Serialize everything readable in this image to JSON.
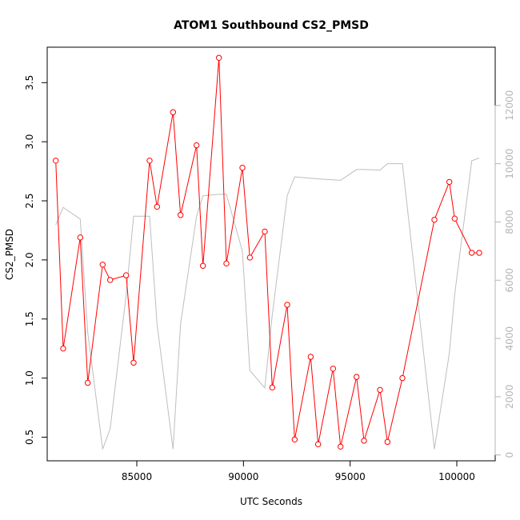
{
  "chart_data": {
    "type": "line",
    "title": "ATOM1 Southbound CS2_PMSD",
    "xlabel": "UTC Seconds",
    "ylabel": "CS2_PMSD",
    "xlim": [
      80800,
      101800
    ],
    "ylim": [
      0.3,
      3.8
    ],
    "y2lim": [
      -200,
      14000
    ],
    "x_ticks": [
      85000,
      90000,
      95000,
      100000
    ],
    "y_ticks": [
      0.5,
      1.0,
      1.5,
      2.0,
      2.5,
      3.0,
      3.5
    ],
    "y2_ticks": [
      0,
      2000,
      4000,
      6000,
      8000,
      10000,
      12000
    ],
    "colors": {
      "primary": "#ff0000",
      "secondary": "#bebebe",
      "secondary_axis": "#b4b4b4"
    },
    "series": [
      {
        "axis": "left",
        "style": "line-with-circles",
        "x": [
          81200,
          81550,
          82350,
          82700,
          83400,
          83750,
          84500,
          84850,
          85600,
          85950,
          86700,
          87050,
          87800,
          88100,
          88850,
          89200,
          89950,
          90300,
          91000,
          91350,
          92050,
          92400,
          93150,
          93500,
          94200,
          94550,
          95300,
          95650,
          96400,
          96750,
          97450,
          98950,
          99650,
          99900,
          100700,
          101050
        ],
        "values": [
          2.84,
          1.25,
          2.19,
          0.96,
          1.96,
          1.83,
          1.87,
          1.13,
          2.84,
          2.45,
          3.25,
          2.38,
          2.97,
          1.95,
          3.71,
          1.97,
          2.78,
          2.02,
          2.24,
          0.92,
          1.62,
          0.48,
          1.18,
          0.44,
          1.08,
          0.42,
          1.01,
          0.47,
          0.9,
          0.46,
          1.0,
          2.34,
          2.66,
          2.35,
          2.06,
          2.06
        ]
      },
      {
        "axis": "right",
        "style": "line",
        "x": [
          81200,
          81550,
          82350,
          82700,
          83400,
          83750,
          84500,
          84850,
          85600,
          85950,
          86700,
          87050,
          87800,
          88100,
          88850,
          89200,
          89950,
          90300,
          91000,
          91350,
          92050,
          92400,
          93150,
          93500,
          94200,
          94550,
          95300,
          95650,
          96400,
          96750,
          97450,
          98950,
          99650,
          99900,
          100700,
          101050
        ],
        "values": [
          7900,
          8500,
          8100,
          4200,
          200,
          900,
          5500,
          8200,
          8200,
          4500,
          200,
          4500,
          8200,
          8900,
          8950,
          8950,
          7000,
          2900,
          2300,
          4800,
          8900,
          9550,
          9500,
          9480,
          9450,
          9430,
          9800,
          9800,
          9780,
          10000,
          10000,
          200,
          3500,
          5500,
          10100,
          10200
        ]
      }
    ]
  }
}
